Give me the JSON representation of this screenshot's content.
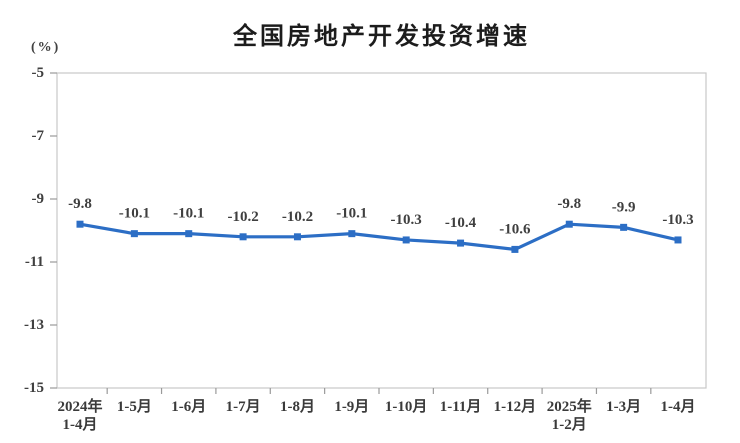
{
  "chart_data": {
    "type": "line",
    "title": "全国房地产开发投资增速",
    "ylabel": "(%)",
    "xlabel": "",
    "categories": [
      "2024年\n1-4月",
      "1-5月",
      "1-6月",
      "1-7月",
      "1-8月",
      "1-9月",
      "1-10月",
      "1-11月",
      "1-12月",
      "2025年\n1-2月",
      "1-3月",
      "1-4月"
    ],
    "values": [
      -9.8,
      -10.1,
      -10.1,
      -10.2,
      -10.2,
      -10.1,
      -10.3,
      -10.4,
      -10.6,
      -9.8,
      -9.9,
      -10.3
    ],
    "data_labels": [
      "-9.8",
      "-10.1",
      "-10.1",
      "-10.2",
      "-10.2",
      "-10.1",
      "-10.3",
      "-10.4",
      "-10.6",
      "-9.8",
      "-9.9",
      "-10.3"
    ],
    "ylim": [
      -15,
      -5
    ],
    "yticks": [
      -5,
      -7,
      -9,
      -11,
      -13,
      -15
    ],
    "grid": false,
    "legend_position": "none",
    "marker": "square",
    "line_color": "#2c6ec5",
    "label_color": "#3f3f3f",
    "axis_color": "#c8c8c8",
    "tick_color": "#9a9a9a"
  }
}
